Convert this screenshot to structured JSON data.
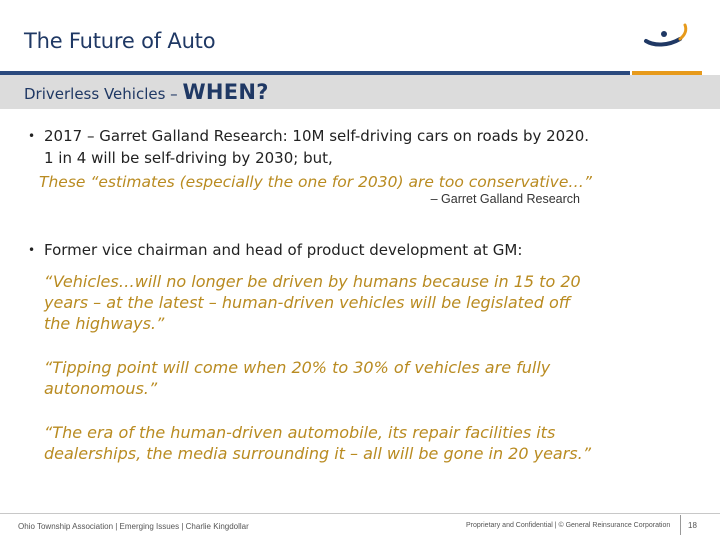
{
  "header": {
    "title": "The Future of Auto",
    "logo_icon": "company-swoosh-logo-icon",
    "brand_colors": {
      "navy": "#2b4a7e",
      "orange": "#e79a1b"
    }
  },
  "subtitle": {
    "prefix": "Driverless Vehicles – ",
    "emphasis": "WHEN?"
  },
  "bullets": [
    {
      "line1": "2017 – Garret Galland Research: 10M self-driving cars on roads by 2020.",
      "line2": "1 in 4 will be self-driving by 2030; but,",
      "quote": "These “estimates (especially the one for 2030) are too conservative…”",
      "attribution": "– Garret Galland Research"
    },
    {
      "line1": "Former vice chairman and head of product development at GM:",
      "quotes": [
        {
          "lines": [
            "“Vehicles…will no longer be driven by humans because in 15 to 20",
            "years – at the latest – human-driven vehicles will be legislated off",
            "the highways.”"
          ]
        },
        {
          "lines": [
            "“Tipping point will come when 20% to 30% of vehicles are fully",
            "autonomous.”"
          ]
        },
        {
          "lines": [
            "“The era of the human-driven automobile, its repair facilities its",
            "dealerships, the media surrounding it – all will be gone in 20 years.”"
          ]
        }
      ]
    }
  ],
  "footer": {
    "left": "Ohio Township Association | Emerging Issues | Charlie Kingdollar",
    "right": "Proprietary and Confidential | © General Reinsurance Corporation",
    "page": "18"
  }
}
